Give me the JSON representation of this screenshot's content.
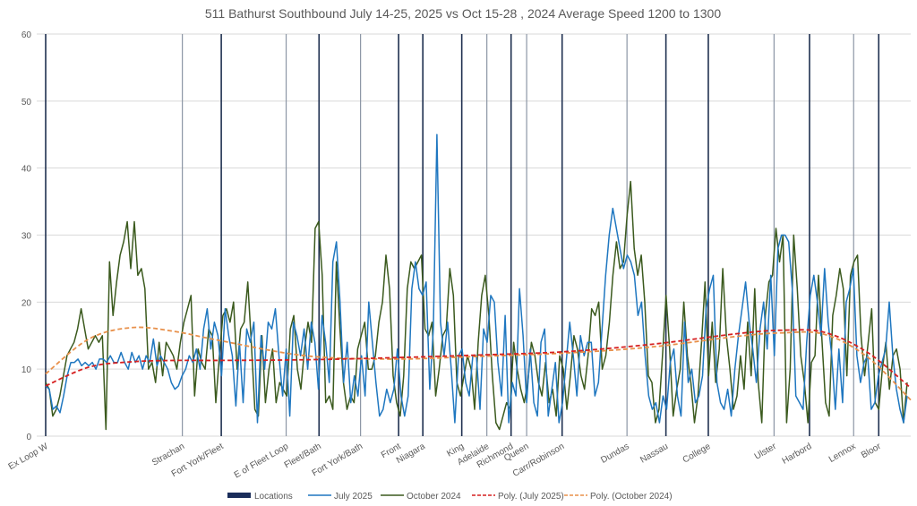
{
  "chart_data": {
    "type": "line",
    "title": "511 Bathurst Southbound July 14-25, 2025 vs Oct 15-28 , 2024 Average Speed 1200 to 1300",
    "xlabel": "",
    "ylabel": "",
    "ylim": [
      0,
      60
    ],
    "yticks": [
      0,
      10,
      20,
      30,
      40,
      50,
      60
    ],
    "xlim": [
      0,
      1000
    ],
    "grid": true,
    "legend_position": "bottom",
    "colors": {
      "locations_dark": "#1f3050",
      "locations_light": "#8c96a5",
      "july_2025": "#1f77c0",
      "october_2024": "#3b5a1e",
      "poly_july_2025": "#d62020",
      "poly_october_2024": "#e8904a",
      "grid": "#d9d9d9"
    },
    "locations": [
      {
        "name": "Ex Loop W",
        "x": 0,
        "style": "dark"
      },
      {
        "name": "Strachan",
        "x": 158,
        "style": "light"
      },
      {
        "name": "Fort York/Fleet",
        "x": 203,
        "style": "dark"
      },
      {
        "name": "E of Fleet Loop",
        "x": 278,
        "style": "light"
      },
      {
        "name": "Fleet/Bath",
        "x": 316,
        "style": "dark"
      },
      {
        "name": "Fort York/Bath",
        "x": 364,
        "style": "light"
      },
      {
        "name": "Front",
        "x": 408,
        "style": "dark"
      },
      {
        "name": "Niagara",
        "x": 436,
        "style": "dark"
      },
      {
        "name": "King",
        "x": 481,
        "style": "dark"
      },
      {
        "name": "Adelaide",
        "x": 510,
        "style": "light"
      },
      {
        "name": "Richmond",
        "x": 538,
        "style": "dark"
      },
      {
        "name": "Queen",
        "x": 556,
        "style": "light"
      },
      {
        "name": "Carr/Robinson",
        "x": 597,
        "style": "dark"
      },
      {
        "name": "Dundas",
        "x": 672,
        "style": "light"
      },
      {
        "name": "Nassau",
        "x": 717,
        "style": "dark"
      },
      {
        "name": "College",
        "x": 766,
        "style": "dark"
      },
      {
        "name": "Ulster",
        "x": 842,
        "style": "light"
      },
      {
        "name": "Harbord",
        "x": 883,
        "style": "dark"
      },
      {
        "name": "Lennox",
        "x": 934,
        "style": "light"
      },
      {
        "name": "Bloor",
        "x": 963,
        "style": "dark"
      }
    ],
    "legend": [
      "Locations",
      "July 2025",
      "October 2024",
      "Poly. (July 2025)",
      "Poly. (October 2024)"
    ],
    "series": [
      {
        "name": "July 2025",
        "x_step": 5,
        "values": [
          7.5,
          7,
          4,
          4.5,
          3.5,
          6,
          9,
          11,
          11,
          11.5,
          10.5,
          11,
          10.5,
          11,
          10,
          11.5,
          11.5,
          11,
          12,
          11,
          11,
          12.5,
          11,
          10,
          12.5,
          11,
          12,
          10,
          12,
          11,
          14.5,
          10.5,
          12,
          11,
          10,
          8,
          7,
          7.5,
          9,
          10,
          12,
          11,
          13,
          10,
          16,
          19,
          13,
          17,
          15,
          9,
          19,
          15,
          12,
          4.5,
          14,
          5,
          16,
          14,
          17,
          2,
          15,
          10,
          17,
          16,
          19,
          12,
          6,
          13,
          3,
          17,
          15,
          12,
          16,
          10,
          17,
          14,
          7,
          18,
          14,
          8,
          26,
          29,
          20,
          8,
          14,
          5,
          9,
          6,
          12,
          6,
          20,
          14,
          8,
          3,
          4,
          7,
          5,
          7,
          13,
          6,
          3,
          6,
          22,
          26,
          22,
          21,
          23,
          7,
          16,
          45,
          17,
          12,
          17,
          10,
          2,
          12,
          13,
          8,
          6,
          12,
          12,
          4,
          16,
          14,
          21,
          20,
          11,
          6,
          18,
          2,
          8,
          6,
          22,
          15,
          5,
          13,
          5,
          3,
          14,
          16,
          3,
          7,
          11,
          2,
          5,
          11,
          17,
          12,
          6,
          15,
          12,
          14,
          14,
          6,
          8,
          16,
          24,
          30,
          34,
          31,
          28,
          25,
          27,
          26,
          24,
          18,
          20,
          12,
          6,
          4,
          5,
          2,
          6,
          4,
          11,
          13,
          6,
          3,
          17,
          8,
          10,
          5,
          6,
          9,
          19,
          22,
          24,
          8,
          5,
          4,
          7,
          3,
          10,
          15,
          19,
          23,
          17,
          13,
          8,
          16,
          20,
          13,
          24,
          12,
          28,
          30,
          30,
          29,
          22,
          6,
          5,
          4,
          14,
          21,
          24,
          20,
          15,
          25,
          17,
          12,
          4,
          13,
          5,
          20,
          22,
          25,
          12,
          8,
          11,
          12,
          4,
          5,
          9,
          11,
          13,
          20,
          12,
          7,
          4,
          2,
          6
        ],
        "last_note": "sampled approx every 5px along route"
      },
      {
        "name": "October 2024",
        "x_step": 5,
        "values": [
          8,
          7,
          3,
          4,
          6,
          9,
          12,
          13,
          14,
          16,
          19,
          16,
          13,
          14,
          15,
          14,
          15,
          1,
          26,
          18,
          23,
          27,
          29,
          32,
          25,
          32,
          24,
          25,
          22,
          10,
          11,
          8,
          14,
          9,
          14,
          13,
          12,
          10,
          14,
          17,
          19,
          21,
          6,
          13,
          11,
          10,
          16,
          15,
          5,
          12,
          18,
          19,
          17,
          20,
          10,
          16,
          17,
          23,
          14,
          4,
          3,
          15,
          5,
          10,
          13,
          5,
          8,
          7,
          6,
          16,
          18,
          10,
          7,
          13,
          17,
          14,
          31,
          32,
          24,
          5,
          6,
          4,
          26,
          16,
          8,
          4,
          6,
          5,
          13,
          15,
          17,
          10,
          10,
          12,
          17,
          20,
          27,
          22,
          9,
          5,
          3,
          9,
          22,
          26,
          25,
          26,
          27,
          16,
          15,
          17,
          6,
          10,
          15,
          16,
          25,
          21,
          8,
          6,
          9,
          12,
          10,
          4,
          14,
          21,
          24,
          18,
          9,
          2,
          1,
          3,
          5,
          4,
          14,
          10,
          7,
          5,
          8,
          14,
          12,
          8,
          6,
          11,
          5,
          7,
          3,
          12,
          10,
          4,
          9,
          15,
          13,
          9,
          7,
          12,
          19,
          18,
          20,
          10,
          12,
          17,
          24,
          29,
          25,
          26,
          33,
          38,
          28,
          24,
          27,
          20,
          9,
          8,
          2,
          4,
          12,
          21,
          13,
          3,
          7,
          10,
          20,
          12,
          8,
          2,
          6,
          14,
          23,
          9,
          17,
          8,
          13,
          25,
          15,
          10,
          4,
          6,
          12,
          7,
          17,
          9,
          22,
          8,
          2,
          18,
          23,
          24,
          31,
          26,
          30,
          2,
          10,
          30,
          22,
          12,
          8,
          2,
          11,
          12,
          24,
          14,
          5,
          3,
          18,
          21,
          25,
          22,
          9,
          24,
          26,
          27,
          15,
          9,
          14,
          19,
          5,
          4,
          10,
          14,
          7,
          12,
          13,
          10,
          2,
          8
        ],
        "last_note": "sampled approx every 5px along route"
      },
      {
        "name": "Poly. (July 2025)",
        "dashed": true,
        "x": [
          0,
          50,
          100,
          150,
          200,
          300,
          400,
          500,
          600,
          700,
          800,
          850,
          900,
          950,
          1000
        ],
        "values": [
          7.5,
          10.3,
          11.1,
          11.3,
          11.3,
          11.4,
          11.7,
          12.1,
          12.6,
          13.7,
          15.3,
          15.8,
          15.5,
          12.5,
          7.2
        ]
      },
      {
        "name": "Poly. (October 2024)",
        "dashed": true,
        "x": [
          0,
          50,
          100,
          150,
          200,
          300,
          400,
          500,
          600,
          700,
          800,
          850,
          900,
          950,
          1000
        ],
        "values": [
          9.3,
          14.5,
          16.2,
          15.6,
          14.3,
          12.0,
          11.5,
          11.9,
          12.4,
          13.3,
          14.9,
          15.4,
          15.2,
          11.8,
          5.4
        ]
      }
    ]
  }
}
